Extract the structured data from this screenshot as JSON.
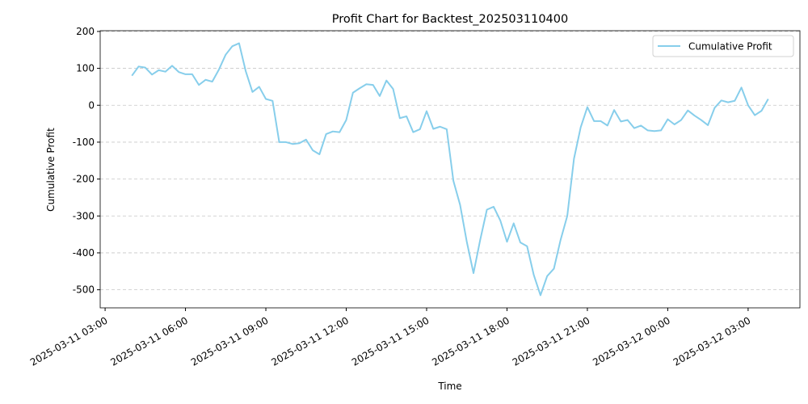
{
  "chart_data": {
    "type": "line",
    "title": "Profit Chart for Backtest_202503110400",
    "x_label": "Time",
    "y_label": "Cumulative Profit",
    "x": [
      "2025-03-11 04:00",
      "2025-03-11 04:15",
      "2025-03-11 04:30",
      "2025-03-11 04:45",
      "2025-03-11 05:00",
      "2025-03-11 05:15",
      "2025-03-11 05:30",
      "2025-03-11 05:45",
      "2025-03-11 06:00",
      "2025-03-11 06:15",
      "2025-03-11 06:30",
      "2025-03-11 06:45",
      "2025-03-11 07:00",
      "2025-03-11 07:15",
      "2025-03-11 07:30",
      "2025-03-11 07:45",
      "2025-03-11 08:00",
      "2025-03-11 08:15",
      "2025-03-11 08:30",
      "2025-03-11 08:45",
      "2025-03-11 09:00",
      "2025-03-11 09:15",
      "2025-03-11 09:30",
      "2025-03-11 09:45",
      "2025-03-11 10:00",
      "2025-03-11 10:15",
      "2025-03-11 10:30",
      "2025-03-11 10:45",
      "2025-03-11 11:00",
      "2025-03-11 11:15",
      "2025-03-11 11:30",
      "2025-03-11 11:45",
      "2025-03-11 12:00",
      "2025-03-11 12:15",
      "2025-03-11 12:30",
      "2025-03-11 12:45",
      "2025-03-11 13:00",
      "2025-03-11 13:15",
      "2025-03-11 13:30",
      "2025-03-11 13:45",
      "2025-03-11 14:00",
      "2025-03-11 14:15",
      "2025-03-11 14:30",
      "2025-03-11 14:45",
      "2025-03-11 15:00",
      "2025-03-11 15:15",
      "2025-03-11 15:30",
      "2025-03-11 15:45",
      "2025-03-11 16:00",
      "2025-03-11 16:15",
      "2025-03-11 16:30",
      "2025-03-11 16:45",
      "2025-03-11 17:00",
      "2025-03-11 17:15",
      "2025-03-11 17:30",
      "2025-03-11 17:45",
      "2025-03-11 18:00",
      "2025-03-11 18:15",
      "2025-03-11 18:30",
      "2025-03-11 18:45",
      "2025-03-11 19:00",
      "2025-03-11 19:15",
      "2025-03-11 19:30",
      "2025-03-11 19:45",
      "2025-03-11 20:00",
      "2025-03-11 20:15",
      "2025-03-11 20:30",
      "2025-03-11 20:45",
      "2025-03-11 21:00",
      "2025-03-11 21:15",
      "2025-03-11 21:30",
      "2025-03-11 21:45",
      "2025-03-11 22:00",
      "2025-03-11 22:15",
      "2025-03-11 22:30",
      "2025-03-11 22:45",
      "2025-03-11 23:00",
      "2025-03-11 23:15",
      "2025-03-11 23:30",
      "2025-03-11 23:45",
      "2025-03-12 00:00",
      "2025-03-12 00:15",
      "2025-03-12 00:30",
      "2025-03-12 00:45",
      "2025-03-12 01:00",
      "2025-03-12 01:15",
      "2025-03-12 01:30",
      "2025-03-12 01:45",
      "2025-03-12 02:00",
      "2025-03-12 02:15",
      "2025-03-12 02:30",
      "2025-03-12 02:45",
      "2025-03-12 03:00",
      "2025-03-12 03:15",
      "2025-03-12 03:30",
      "2025-03-12 03:45"
    ],
    "series": [
      {
        "name": "Cumulative Profit",
        "color": "#87ceeb",
        "values": [
          80,
          105,
          102,
          83,
          95,
          91,
          107,
          90,
          84,
          84,
          55,
          69,
          64,
          97,
          137,
          160,
          168,
          92,
          36,
          50,
          17,
          12,
          -100,
          -100,
          -105,
          -103,
          -93,
          -122,
          -133,
          -78,
          -71,
          -73,
          -40,
          34,
          46,
          57,
          55,
          25,
          67,
          44,
          -35,
          -30,
          -73,
          -65,
          -16,
          -64,
          -58,
          -65,
          -205,
          -270,
          -370,
          -455,
          -365,
          -283,
          -275,
          -312,
          -370,
          -320,
          -372,
          -382,
          -460,
          -515,
          -463,
          -443,
          -365,
          -300,
          -145,
          -60,
          -5,
          -43,
          -43,
          -55,
          -13,
          -44,
          -40,
          -62,
          -55,
          -68,
          -70,
          -68,
          -38,
          -52,
          -40,
          -14,
          -28,
          -40,
          -54,
          -7,
          13,
          8,
          12,
          48,
          0,
          -27,
          -15,
          17
        ]
      }
    ],
    "xlim": [
      "2025-03-11 02:49",
      "2025-03-12 04:56"
    ],
    "xticks": [
      "2025-03-11 03:00",
      "2025-03-11 06:00",
      "2025-03-11 09:00",
      "2025-03-11 12:00",
      "2025-03-11 15:00",
      "2025-03-11 18:00",
      "2025-03-11 21:00",
      "2025-03-12 00:00",
      "2025-03-12 03:00"
    ],
    "ylim": [
      -549,
      202
    ],
    "yticks": [
      -500,
      -400,
      -300,
      -200,
      -100,
      0,
      100,
      200
    ],
    "grid": true,
    "legend": "upper right"
  }
}
